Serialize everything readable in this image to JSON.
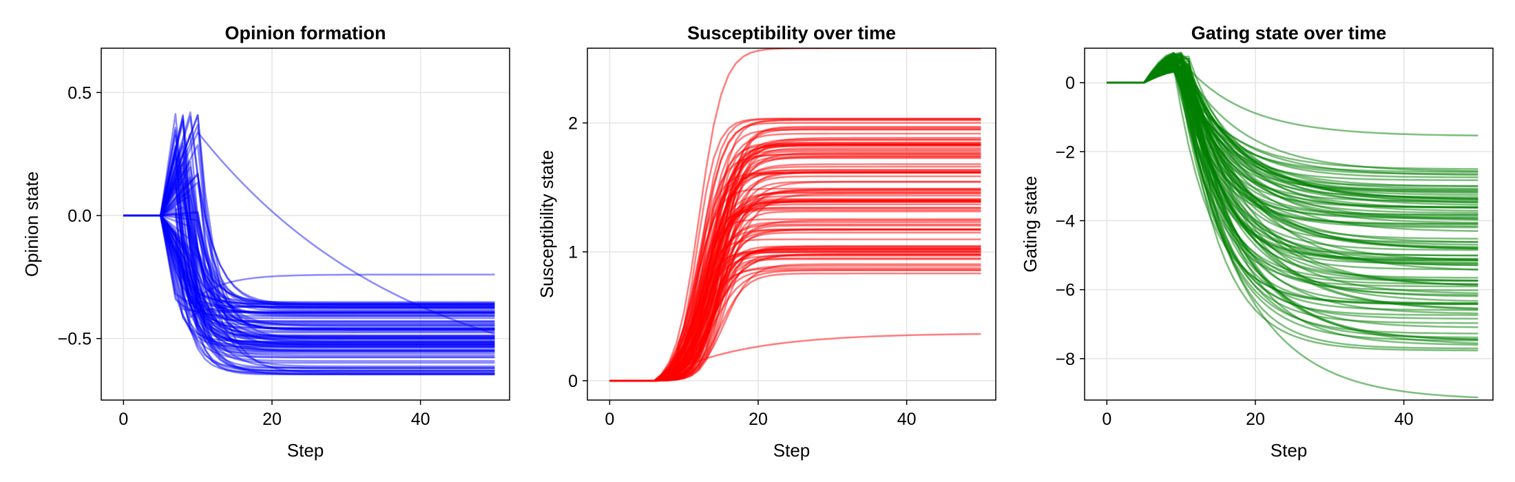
{
  "chart_data": [
    {
      "type": "line",
      "title": "Opinion formation",
      "xlabel": "Step",
      "ylabel": "Opinion state",
      "xlim": [
        -3,
        52
      ],
      "ylim": [
        -0.75,
        0.68
      ],
      "xticks": [
        0,
        20,
        40
      ],
      "yticks": [
        -0.5,
        0.0,
        0.5
      ],
      "ytick_labels": [
        "−0.5",
        "0.0",
        "0.5"
      ],
      "grid": true,
      "legend": "none",
      "color": "#0000ff",
      "line_opacity": 0.45,
      "n_series": 100,
      "x_steps": [
        0,
        50
      ],
      "series_pattern": "each series stays at 0.0 until step 5, diverges to a peak between -0.4 and 0.67 around steps 7–10, then drops and settles at a final value",
      "final_value_range": [
        -0.75,
        -0.24
      ],
      "final_value_typical": [
        -0.65,
        -0.35
      ]
    },
    {
      "type": "line",
      "title": "Susceptibility over time",
      "xlabel": "Step",
      "ylabel": "Susceptibility state",
      "xlim": [
        -3,
        52
      ],
      "ylim": [
        -0.15,
        2.58
      ],
      "xticks": [
        0,
        20,
        40
      ],
      "yticks": [
        0,
        1,
        2
      ],
      "ytick_labels": [
        "0",
        "1",
        "2"
      ],
      "grid": true,
      "legend": "none",
      "color": "#ff0000",
      "line_opacity": 0.5,
      "n_series": 100,
      "x_steps": [
        0,
        50
      ],
      "series_pattern": "each series stays at 0 until about step 6, rises steeply between steps 8–18, then plateaus",
      "final_value_range": [
        0.37,
        2.58
      ],
      "final_value_typical": [
        0.8,
        2.05
      ]
    },
    {
      "type": "line",
      "title": "Gating state over time",
      "xlabel": "Step",
      "ylabel": "Gating state",
      "xlim": [
        -3,
        52
      ],
      "ylim": [
        -9.2,
        1.0
      ],
      "xticks": [
        0,
        20,
        40
      ],
      "yticks": [
        -8,
        -6,
        -4,
        -2,
        0
      ],
      "ytick_labels": [
        "−8",
        "−6",
        "−4",
        "−2",
        "0"
      ],
      "grid": true,
      "legend": "none",
      "color": "#008000",
      "line_opacity": 0.5,
      "n_series": 100,
      "x_steps": [
        0,
        50
      ],
      "series_pattern": "each series stays at 0 until step 5, bumps up to as much as 0.9 around step 10, then decays and plateaus",
      "final_value_range": [
        -9.2,
        -1.55
      ],
      "final_value_typical": [
        -7.8,
        -2.5
      ]
    }
  ]
}
